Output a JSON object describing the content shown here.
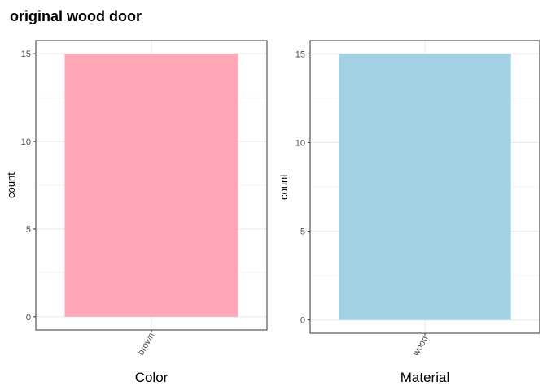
{
  "title": "original wood door",
  "chart_data": [
    {
      "type": "bar",
      "categories": [
        "brown"
      ],
      "values": [
        15
      ],
      "xlabel": "Color",
      "ylabel": "count",
      "ylim": [
        -0.75,
        15.75
      ],
      "yticks": [
        0,
        5,
        10,
        15
      ],
      "ytick_labels": [
        "0",
        "5",
        "10",
        "15"
      ],
      "color": "#ffa7b6",
      "grid": true
    },
    {
      "type": "bar",
      "categories": [
        "wood"
      ],
      "values": [
        15
      ],
      "xlabel": "Material",
      "ylabel": "count",
      "ylim": [
        -0.75,
        15.75
      ],
      "yticks": [
        0,
        5,
        10,
        15
      ],
      "ytick_labels": [
        "0",
        "5",
        "10",
        "15"
      ],
      "color": "#a1d1e2",
      "grid": true
    }
  ]
}
